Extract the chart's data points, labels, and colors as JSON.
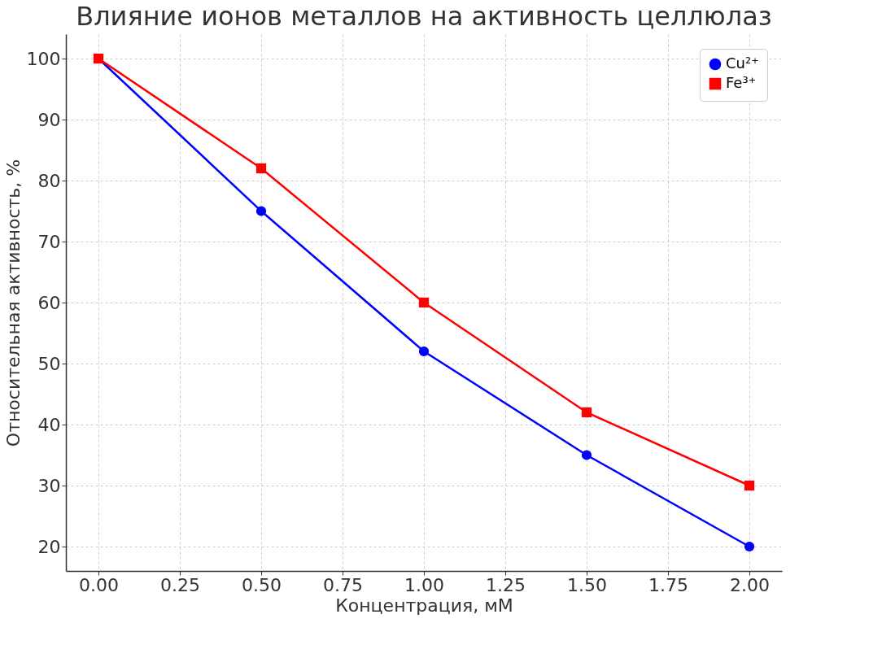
{
  "chart_data": {
    "type": "line",
    "title": "Влияние ионов металлов на активность целлюлаз",
    "xlabel": "Концентрация, мМ",
    "ylabel": "Относительная активность, %",
    "x": [
      0,
      0.5,
      1,
      1.5,
      2
    ],
    "series": [
      {
        "name": "Cu²⁺",
        "color": "#0000ff",
        "marker": "circle",
        "values": [
          100,
          75,
          52,
          35,
          20
        ]
      },
      {
        "name": "Fe³⁺",
        "color": "#ff0000",
        "marker": "square",
        "values": [
          100,
          82,
          60,
          42,
          30
        ]
      }
    ],
    "xlim": [
      -0.1,
      2.1
    ],
    "xticks": [
      {
        "value": 0,
        "label": "0.00"
      },
      {
        "value": 0.25,
        "label": "0.25"
      },
      {
        "value": 0.5,
        "label": "0.50"
      },
      {
        "value": 0.75,
        "label": "0.75"
      },
      {
        "value": 1,
        "label": "1.00"
      },
      {
        "value": 1.25,
        "label": "1.25"
      },
      {
        "value": 1.5,
        "label": "1.50"
      },
      {
        "value": 1.75,
        "label": "1.75"
      },
      {
        "value": 2,
        "label": "2.00"
      }
    ],
    "ylim": [
      16,
      104
    ],
    "yticks": [
      20,
      30,
      40,
      50,
      60,
      70,
      80,
      90,
      100
    ],
    "grid": true,
    "legend": "top right",
    "line_style": "solid"
  }
}
